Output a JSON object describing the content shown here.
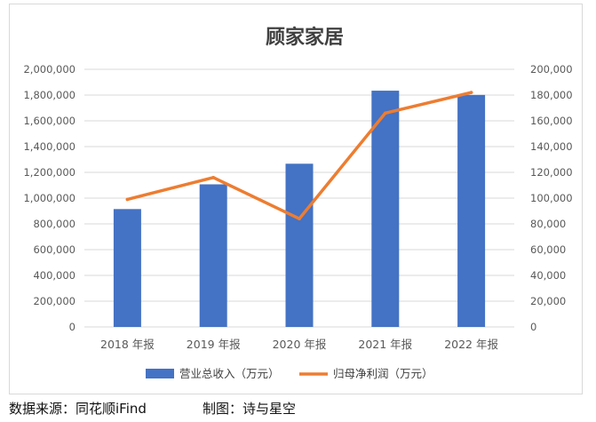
{
  "chart_data": {
    "type": "bar",
    "title": "顾家家居",
    "categories": [
      "2018 年报",
      "2019 年报",
      "2020 年报",
      "2021 年报",
      "2022 年报"
    ],
    "series": [
      {
        "name": "营业总收入（万元）",
        "type": "bar",
        "axis": "left",
        "color": "#4472C4",
        "values": [
          915000,
          1107000,
          1267000,
          1834000,
          1801000
        ]
      },
      {
        "name": "归母净利润（万元）",
        "type": "line",
        "axis": "right",
        "color": "#ED7D31",
        "values": [
          99000,
          116000,
          84000,
          166000,
          182000
        ]
      }
    ],
    "ylim_left": [
      0,
      2000000
    ],
    "yticks_left": [
      "0",
      "200,000",
      "400,000",
      "600,000",
      "800,000",
      "1,000,000",
      "1,200,000",
      "1,400,000",
      "1,600,000",
      "1,800,000",
      "2,000,000"
    ],
    "ylim_right": [
      0,
      200000
    ],
    "yticks_right": [
      "0",
      "20,000",
      "40,000",
      "60,000",
      "80,000",
      "100,000",
      "120,000",
      "140,000",
      "160,000",
      "180,000",
      "200,000"
    ],
    "grid": true,
    "legend_position": "bottom"
  },
  "footer": {
    "source": "数据来源：同花顺iFind",
    "credit": "制图：诗与星空"
  }
}
